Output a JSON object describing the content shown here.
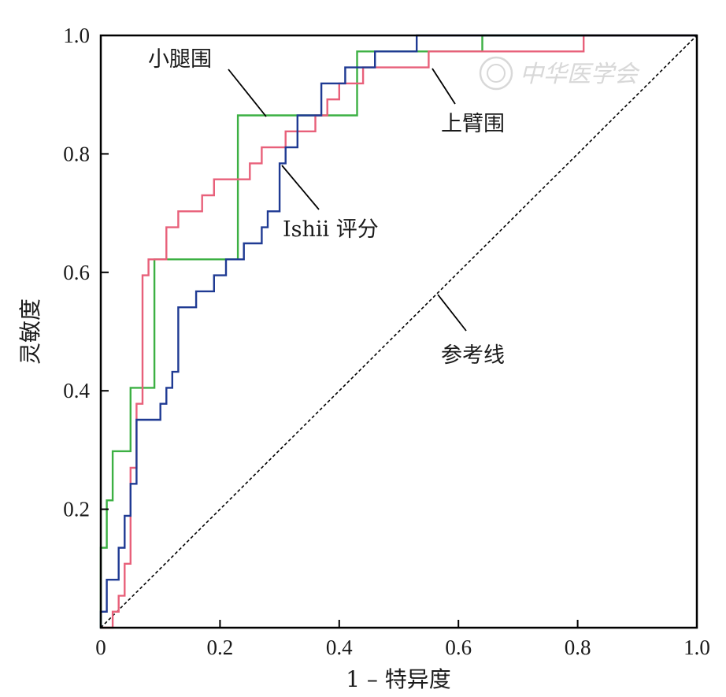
{
  "watermark": {
    "text": "中华医学会"
  },
  "chart_data": {
    "type": "line",
    "subtype": "roc-curve",
    "title": "",
    "xlabel": "1 – 特异度",
    "ylabel": "灵敏度",
    "xlim": [
      0,
      1
    ],
    "ylim": [
      0,
      1
    ],
    "x_ticks": [
      "0",
      "0.2",
      "0.4",
      "0.6",
      "0.8",
      "1.0"
    ],
    "y_ticks": [
      "0.2",
      "0.4",
      "0.6",
      "0.8",
      "1.0"
    ],
    "grid": false,
    "legend": "none",
    "series": [
      {
        "name": "小腿围",
        "color": "#3cb043",
        "points": [
          [
            0,
            0
          ],
          [
            0,
            0.135
          ],
          [
            0.01,
            0.135
          ],
          [
            0.01,
            0.215
          ],
          [
            0.02,
            0.215
          ],
          [
            0.02,
            0.298
          ],
          [
            0.05,
            0.298
          ],
          [
            0.05,
            0.405
          ],
          [
            0.09,
            0.405
          ],
          [
            0.09,
            0.622
          ],
          [
            0.23,
            0.622
          ],
          [
            0.23,
            0.865
          ],
          [
            0.43,
            0.865
          ],
          [
            0.43,
            0.973
          ],
          [
            0.64,
            0.973
          ],
          [
            0.64,
            1.0
          ],
          [
            1.0,
            1.0
          ]
        ]
      },
      {
        "name": "上臂围",
        "color": "#e8607a",
        "points": [
          [
            0,
            0
          ],
          [
            0.02,
            0
          ],
          [
            0.02,
            0.027
          ],
          [
            0.03,
            0.027
          ],
          [
            0.03,
            0.054
          ],
          [
            0.04,
            0.054
          ],
          [
            0.04,
            0.108
          ],
          [
            0.05,
            0.108
          ],
          [
            0.05,
            0.27
          ],
          [
            0.06,
            0.27
          ],
          [
            0.06,
            0.378
          ],
          [
            0.07,
            0.378
          ],
          [
            0.07,
            0.459
          ],
          [
            0.07,
            0.459
          ],
          [
            0.07,
            0.595
          ],
          [
            0.08,
            0.595
          ],
          [
            0.08,
            0.622
          ],
          [
            0.11,
            0.622
          ],
          [
            0.11,
            0.676
          ],
          [
            0.13,
            0.676
          ],
          [
            0.13,
            0.703
          ],
          [
            0.17,
            0.703
          ],
          [
            0.17,
            0.73
          ],
          [
            0.19,
            0.73
          ],
          [
            0.19,
            0.757
          ],
          [
            0.25,
            0.757
          ],
          [
            0.25,
            0.784
          ],
          [
            0.27,
            0.784
          ],
          [
            0.27,
            0.811
          ],
          [
            0.31,
            0.811
          ],
          [
            0.31,
            0.838
          ],
          [
            0.36,
            0.838
          ],
          [
            0.36,
            0.865
          ],
          [
            0.38,
            0.865
          ],
          [
            0.38,
            0.892
          ],
          [
            0.4,
            0.892
          ],
          [
            0.4,
            0.919
          ],
          [
            0.44,
            0.919
          ],
          [
            0.44,
            0.946
          ],
          [
            0.55,
            0.946
          ],
          [
            0.55,
            0.973
          ],
          [
            0.62,
            0.973
          ],
          [
            0.62,
            0.973
          ],
          [
            0.81,
            0.973
          ],
          [
            0.81,
            1.0
          ],
          [
            1.0,
            1.0
          ]
        ]
      },
      {
        "name": "Ishii 评分",
        "color": "#1f3a93",
        "points": [
          [
            0,
            0
          ],
          [
            0,
            0.027
          ],
          [
            0.01,
            0.027
          ],
          [
            0.01,
            0.081
          ],
          [
            0.03,
            0.081
          ],
          [
            0.03,
            0.135
          ],
          [
            0.04,
            0.135
          ],
          [
            0.04,
            0.189
          ],
          [
            0.05,
            0.189
          ],
          [
            0.05,
            0.243
          ],
          [
            0.06,
            0.243
          ],
          [
            0.06,
            0.351
          ],
          [
            0.1,
            0.351
          ],
          [
            0.1,
            0.378
          ],
          [
            0.11,
            0.378
          ],
          [
            0.11,
            0.405
          ],
          [
            0.12,
            0.405
          ],
          [
            0.12,
            0.432
          ],
          [
            0.13,
            0.432
          ],
          [
            0.13,
            0.459
          ],
          [
            0.13,
            0.459
          ],
          [
            0.13,
            0.541
          ],
          [
            0.16,
            0.541
          ],
          [
            0.16,
            0.568
          ],
          [
            0.19,
            0.568
          ],
          [
            0.19,
            0.595
          ],
          [
            0.21,
            0.595
          ],
          [
            0.21,
            0.622
          ],
          [
            0.24,
            0.622
          ],
          [
            0.24,
            0.649
          ],
          [
            0.27,
            0.649
          ],
          [
            0.27,
            0.676
          ],
          [
            0.28,
            0.676
          ],
          [
            0.28,
            0.703
          ],
          [
            0.3,
            0.703
          ],
          [
            0.3,
            0.784
          ],
          [
            0.31,
            0.784
          ],
          [
            0.31,
            0.811
          ],
          [
            0.33,
            0.811
          ],
          [
            0.33,
            0.865
          ],
          [
            0.37,
            0.865
          ],
          [
            0.37,
            0.919
          ],
          [
            0.41,
            0.919
          ],
          [
            0.41,
            0.946
          ],
          [
            0.46,
            0.946
          ],
          [
            0.46,
            0.973
          ],
          [
            0.53,
            0.973
          ],
          [
            0.53,
            1.0
          ],
          [
            1.0,
            1.0
          ]
        ]
      },
      {
        "name": "参考线",
        "color": "#000000",
        "dashed": true,
        "points": [
          [
            0,
            0
          ],
          [
            1,
            1
          ]
        ]
      }
    ],
    "annotations": [
      {
        "text": "小腿围",
        "target": [
          0.27,
          0.865
        ]
      },
      {
        "text": "上臂围",
        "target": [
          0.57,
          0.946
        ]
      },
      {
        "text": "Ishii 评分",
        "target": [
          0.3,
          0.78
        ]
      },
      {
        "text": "参考线",
        "target": [
          0.57,
          0.57
        ]
      }
    ]
  }
}
